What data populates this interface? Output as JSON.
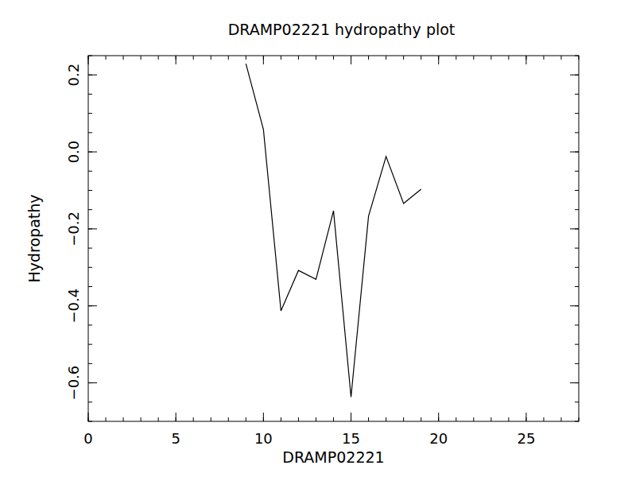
{
  "chart_data": {
    "type": "line",
    "title": "DRAMP02221 hydropathy plot",
    "x_label": "DRAMP02221",
    "y_label": "Hydropathy",
    "x": [
      9,
      10,
      11,
      12,
      13,
      14,
      15,
      16,
      17,
      18,
      19
    ],
    "values": [
      0.229,
      0.058,
      -0.413,
      -0.308,
      -0.331,
      -0.153,
      -0.637,
      -0.167,
      -0.012,
      -0.134,
      -0.097
    ],
    "color": "#000000",
    "xlim": [
      0,
      28
    ],
    "xticks": [
      0,
      5,
      10,
      15,
      20,
      25
    ],
    "ylim": [
      -0.7,
      0.25
    ],
    "yticks": [
      0.2,
      {
        "value": 0,
        "label": "0.0"
      },
      {
        "value": -0.2,
        "label": "−0.2"
      },
      {
        "value": -0.4,
        "label": "−0.4"
      },
      {
        "value": -0.6,
        "label": "−0.6"
      }
    ],
    "grid": false
  }
}
